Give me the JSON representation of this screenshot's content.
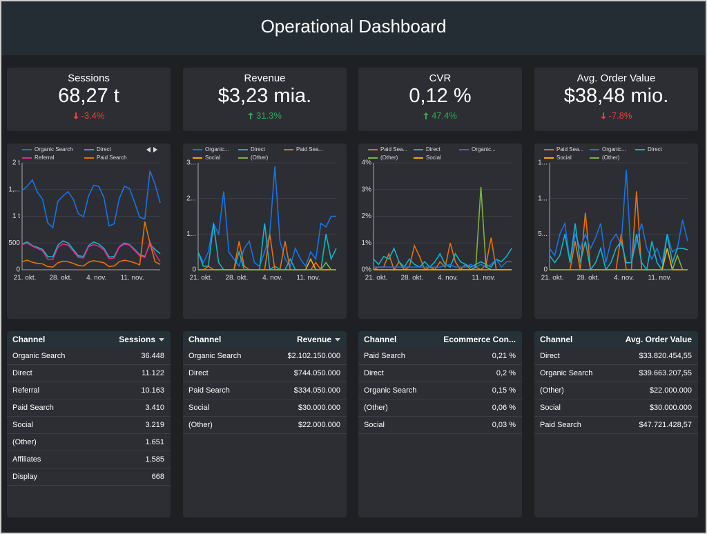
{
  "header": {
    "title": "Operational Dashboard"
  },
  "kpis": [
    {
      "label": "Sessions",
      "value": "68,27 t",
      "delta": "-3.4%",
      "trend": "down"
    },
    {
      "label": "Revenue",
      "value": "$3,23 mia.",
      "delta": "31.3%",
      "trend": "up"
    },
    {
      "label": "CVR",
      "value": "0,12 %",
      "delta": "47.4%",
      "trend": "up"
    },
    {
      "label": "Avg. Order Value",
      "value": "$38,48 mio.",
      "delta": "-7.8%",
      "trend": "down"
    }
  ],
  "chart_data": [
    {
      "type": "line",
      "categories": [
        "21. okt.",
        null,
        null,
        null,
        null,
        null,
        null,
        "28. okt.",
        null,
        null,
        null,
        null,
        null,
        null,
        "4. nov.",
        null,
        null,
        null,
        null,
        null,
        null,
        "11. nov.",
        null,
        null,
        null,
        null,
        null,
        null
      ],
      "ylim": [
        0,
        2000
      ],
      "yticks": [
        0,
        500,
        {
          "value": 1000,
          "label": "1 t"
        },
        {
          "value": 1500,
          "label": "1,..."
        },
        {
          "value": 2000,
          "label": "2 t"
        }
      ],
      "grid": true,
      "series": [
        {
          "name": "Organic Search",
          "color": "#1a73e8",
          "values": [
            1480,
            1560,
            1680,
            1450,
            1320,
            880,
            790,
            1280,
            1380,
            1460,
            1320,
            1050,
            990,
            1380,
            1580,
            1560,
            1350,
            820,
            860,
            1330,
            1560,
            1520,
            1260,
            980,
            950,
            1850,
            1600,
            1250
          ]
        },
        {
          "name": "Direct",
          "color": "#12b5cb",
          "values": [
            480,
            520,
            450,
            420,
            380,
            250,
            240,
            460,
            540,
            500,
            380,
            260,
            250,
            450,
            520,
            480,
            400,
            240,
            250,
            430,
            500,
            470,
            380,
            280,
            250,
            480,
            380,
            300
          ]
        },
        {
          "name": "Referral",
          "color": "#e52592",
          "values": [
            470,
            500,
            440,
            400,
            350,
            200,
            190,
            420,
            480,
            460,
            350,
            230,
            220,
            430,
            470,
            440,
            370,
            210,
            220,
            420,
            480,
            460,
            360,
            260,
            230,
            520,
            300,
            150
          ]
        },
        {
          "name": "Paid Search",
          "color": "#e8710a",
          "values": [
            150,
            180,
            140,
            120,
            110,
            60,
            50,
            130,
            160,
            150,
            120,
            80,
            70,
            140,
            170,
            150,
            130,
            60,
            70,
            150,
            180,
            160,
            130,
            90,
            900,
            500,
            150,
            100
          ]
        }
      ]
    },
    {
      "type": "line",
      "categories": [
        "21. okt.",
        null,
        null,
        null,
        null,
        null,
        null,
        "28. okt.",
        null,
        null,
        null,
        null,
        null,
        null,
        "4. nov.",
        null,
        null,
        null,
        null,
        null,
        null,
        "11. nov.",
        null,
        null,
        null,
        null,
        null,
        null
      ],
      "ylim": [
        0,
        300000000
      ],
      "yticks": [
        0,
        {
          "value": 100000000,
          "label": "1..."
        },
        {
          "value": 200000000,
          "label": "2..."
        },
        {
          "value": 300000000,
          "label": "3..."
        }
      ],
      "grid": true,
      "series": [
        {
          "name": "Organic...",
          "color": "#1a73e8",
          "values": [
            50000000.0,
            20000000.0,
            50000000.0,
            130000000.0,
            100000000.0,
            220000000.0,
            50000000.0,
            30000000.0,
            10000000.0,
            60000000.0,
            80000000.0,
            20000000.0,
            10000000.0,
            50000000.0,
            100000000.0,
            290000000.0,
            80000000.0,
            30000000.0,
            10000000.0,
            60000000.0,
            30000000.0,
            10000000.0,
            50000000.0,
            30000000.0,
            130000000.0,
            120000000.0,
            150000000.0,
            150000000.0
          ]
        },
        {
          "name": "Direct",
          "color": "#12b5cb",
          "values": [
            50000000.0,
            10000000.0,
            10000000.0,
            130000000.0,
            20000000.0,
            0,
            0,
            0,
            50000000.0,
            0,
            0,
            0,
            0,
            130000000.0,
            0,
            10000000.0,
            0,
            0,
            30000000.0,
            0,
            0,
            0,
            0,
            0,
            0,
            100000000.0,
            30000000.0,
            60000000.0
          ]
        },
        {
          "name": "Paid Sea...",
          "color": "#e8710a",
          "values": [
            0,
            0,
            10000000.0,
            0,
            0,
            0,
            0,
            0,
            80000000.0,
            10000000.0,
            0,
            0,
            0,
            0,
            100000000.0,
            0,
            0,
            80000000.0,
            0,
            0,
            0,
            0,
            0,
            20000000.0,
            0,
            0,
            0,
            0
          ]
        },
        {
          "name": "Social",
          "color": "#f9ab00",
          "values": [
            0,
            0,
            0,
            0,
            0,
            0,
            0,
            0,
            0,
            0,
            0,
            0,
            0,
            0,
            0,
            0,
            0,
            0,
            0,
            0,
            0,
            0,
            30000000.0,
            0,
            0,
            0,
            0,
            0
          ]
        },
        {
          "name": "(Other)",
          "color": "#7cb342",
          "values": [
            0,
            0,
            0,
            0,
            0,
            0,
            0,
            0,
            0,
            0,
            0,
            0,
            0,
            0,
            0,
            0,
            0,
            0,
            0,
            0,
            0,
            0,
            0,
            0,
            0,
            20000000.0,
            0,
            0
          ]
        }
      ]
    },
    {
      "type": "line",
      "categories": [
        "21. okt.",
        null,
        null,
        null,
        null,
        null,
        null,
        "28. okt.",
        null,
        null,
        null,
        null,
        null,
        null,
        "4. nov.",
        null,
        null,
        null,
        null,
        null,
        null,
        "11. nov.",
        null,
        null,
        null,
        null,
        null,
        null
      ],
      "ylim": [
        0,
        4
      ],
      "yticks": [
        {
          "value": 0,
          "label": "0%"
        },
        {
          "value": 1,
          "label": "1%"
        },
        {
          "value": 2,
          "label": "2%"
        },
        {
          "value": 3,
          "label": "3%"
        },
        {
          "value": 4,
          "label": "4%"
        }
      ],
      "grid": true,
      "series": [
        {
          "name": "Paid Sea...",
          "color": "#e8710a",
          "values": [
            0,
            0.1,
            0.1,
            0.6,
            0,
            0.3,
            0,
            0.1,
            0.9,
            0.5,
            0,
            0.1,
            0,
            0.3,
            0.1,
            1.0,
            0.3,
            0,
            0.2,
            0,
            0.1,
            0,
            0.2,
            1.2,
            0,
            0,
            0,
            0
          ]
        },
        {
          "name": "Direct",
          "color": "#12b5cb",
          "values": [
            0.4,
            0.2,
            0.5,
            0.4,
            0.8,
            0.3,
            0.1,
            0.4,
            0.2,
            0.1,
            0.3,
            0.1,
            0.3,
            0.6,
            0.2,
            0.1,
            0.6,
            0.3,
            0.2,
            0.1,
            0.2,
            0.3,
            0.2,
            0.1,
            0.4,
            0.3,
            0.5,
            0.8
          ]
        },
        {
          "name": "Organic...",
          "color": "#1a73e8",
          "values": [
            0.1,
            0.1,
            0.1,
            0.1,
            0.1,
            0.1,
            0.1,
            0.1,
            0.1,
            0.1,
            0.1,
            0.1,
            0.1,
            0.1,
            0.15,
            0.2,
            0.1,
            0.1,
            0.1,
            0.2,
            0.1,
            0.2,
            0.1,
            0.2,
            0.4,
            0.1,
            0.3,
            0.3
          ]
        },
        {
          "name": "(Other)",
          "color": "#7cb342",
          "values": [
            0,
            0,
            0,
            0,
            0,
            0,
            0,
            0,
            0,
            0,
            0,
            0,
            0,
            0,
            0,
            0,
            0,
            0,
            0,
            0,
            0.1,
            3.1,
            0.1,
            0,
            0,
            0,
            0,
            0
          ]
        },
        {
          "name": "Social",
          "color": "#f9ab00",
          "values": [
            0,
            0,
            0,
            0,
            0,
            0,
            0,
            0,
            0,
            0,
            0,
            0,
            0,
            0,
            0,
            0,
            0,
            0,
            0,
            0,
            0,
            0,
            0,
            0,
            0,
            0,
            0,
            0
          ]
        }
      ]
    },
    {
      "type": "line",
      "categories": [
        "21. okt.",
        null,
        null,
        null,
        null,
        null,
        null,
        "28. okt.",
        null,
        null,
        null,
        null,
        null,
        null,
        "4. nov.",
        null,
        null,
        null,
        null,
        null,
        null,
        "11. nov.",
        null,
        null,
        null,
        null,
        null,
        null
      ],
      "ylim": [
        0,
        150000000
      ],
      "yticks": [
        0,
        {
          "value": 50000000,
          "label": "5..."
        },
        {
          "value": 100000000,
          "label": "1..."
        },
        {
          "value": 150000000,
          "label": "1..."
        }
      ],
      "grid": true,
      "series": [
        {
          "name": "Paid Sea...",
          "color": "#e8710a",
          "values": [
            0,
            0,
            0,
            0,
            0,
            40000000.0,
            0,
            80000000.0,
            0,
            0,
            0,
            0,
            0,
            0,
            50000000.0,
            0,
            0,
            110000000.0,
            0,
            0,
            0,
            0,
            0,
            30000000.0,
            0,
            0,
            0,
            0
          ]
        },
        {
          "name": "Organic...",
          "color": "#1a73e8",
          "values": [
            30000000.0,
            20000000.0,
            50000000.0,
            65000000.0,
            10000000.0,
            50000000.0,
            30000000.0,
            50000000.0,
            30000000.0,
            45000000.0,
            65000000.0,
            10000000.0,
            40000000.0,
            50000000.0,
            35000000.0,
            140000000.0,
            10000000.0,
            40000000.0,
            65000000.0,
            30000000.0,
            15000000.0,
            30000000.0,
            10000000.0,
            50000000.0,
            25000000.0,
            30000000.0,
            70000000.0,
            40000000.0
          ]
        },
        {
          "name": "Direct",
          "color": "#12b5cb",
          "values": [
            20000000.0,
            10000000.0,
            20000000.0,
            50000000.0,
            10000000.0,
            65000000.0,
            10000000.0,
            40000000.0,
            0,
            10000000.0,
            30000000.0,
            0,
            10000000.0,
            30000000.0,
            40000000.0,
            10000000.0,
            10000000.0,
            50000000.0,
            10000000.0,
            0,
            40000000.0,
            10000000.0,
            0,
            50000000.0,
            10000000.0,
            30000000.0,
            30000000.0,
            28000000.0
          ]
        },
        {
          "name": "Social",
          "color": "#f9ab00",
          "values": [
            0,
            0,
            0,
            0,
            0,
            0,
            0,
            0,
            0,
            0,
            0,
            0,
            0,
            0,
            0,
            0,
            0,
            0,
            0,
            0,
            0,
            0,
            0,
            30000000.0,
            0,
            0,
            0,
            0
          ]
        },
        {
          "name": "(Other)",
          "color": "#7cb342",
          "values": [
            0,
            0,
            0,
            0,
            0,
            0,
            0,
            0,
            0,
            0,
            0,
            0,
            0,
            0,
            0,
            0,
            0,
            0,
            0,
            0,
            0,
            0,
            0,
            0,
            0,
            20000000.0,
            0,
            0
          ]
        }
      ]
    }
  ],
  "tables": [
    {
      "columns": [
        "Channel",
        "Sessions"
      ],
      "sorted": true,
      "rows": [
        [
          "Organic Search",
          "36.448"
        ],
        [
          "Direct",
          "11.122"
        ],
        [
          "Referral",
          "10.163"
        ],
        [
          "Paid Search",
          "3.410"
        ],
        [
          "Social",
          "3.219"
        ],
        [
          "(Other)",
          "1.651"
        ],
        [
          "Affiliates",
          "1.585"
        ],
        [
          "Display",
          "668"
        ]
      ]
    },
    {
      "columns": [
        "Channel",
        "Revenue"
      ],
      "sorted": true,
      "rows": [
        [
          "Organic Search",
          "$2.102.150.000"
        ],
        [
          "Direct",
          "$744.050.000"
        ],
        [
          "Paid Search",
          "$334.050.000"
        ],
        [
          "Social",
          "$30.000.000"
        ],
        [
          "(Other)",
          "$22.000.000"
        ]
      ]
    },
    {
      "columns": [
        "Channel",
        "Ecommerce Con..."
      ],
      "sorted": false,
      "rows": [
        [
          "Paid Search",
          "0,21 %"
        ],
        [
          "Direct",
          "0,2 %"
        ],
        [
          "Organic Search",
          "0,15 %"
        ],
        [
          "(Other)",
          "0,06 %"
        ],
        [
          "Social",
          "0,03 %"
        ]
      ]
    },
    {
      "columns": [
        "Channel",
        "Avg. Order Value"
      ],
      "sorted": false,
      "rows": [
        [
          "Direct",
          "$33.820.454,55"
        ],
        [
          "Organic Search",
          "$39.663.207,55"
        ],
        [
          "(Other)",
          "$22.000.000"
        ],
        [
          "Social",
          "$30.000.000"
        ],
        [
          "Paid Search",
          "$47.721.428,57"
        ]
      ]
    }
  ]
}
